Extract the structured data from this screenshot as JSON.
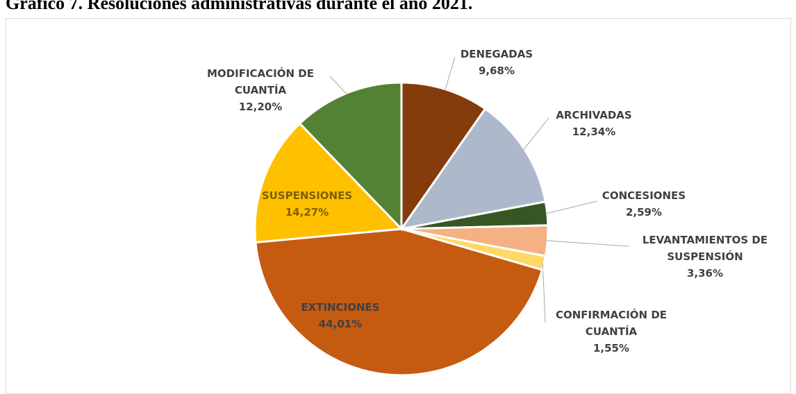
{
  "chart_data": {
    "type": "pie",
    "title": "Gráfico 7. Resoluciones administrativas durante el año 2021.",
    "categories": [
      "DENEGADAS",
      "ARCHIVADAS",
      "CONCESIONES",
      "LEVANTAMIENTOS DE SUSPENSIÓN",
      "CONFIRMACIÓN DE CUANTÍA",
      "EXTINCIONES",
      "SUSPENSIONES",
      "MODIFICACIÓN DE CUANTÍA"
    ],
    "values": [
      9.68,
      12.34,
      2.59,
      3.36,
      1.55,
      44.01,
      14.27,
      12.2
    ],
    "value_labels": [
      "9,68%",
      "12,34%",
      "2,59%",
      "3,36%",
      "1,55%",
      "44,01%",
      "14,27%",
      "12,20%"
    ],
    "colors": [
      "#843c0c",
      "#adb9ca",
      "#375623",
      "#f4b183",
      "#ffd966",
      "#c55a11",
      "#ffc000",
      "#548235"
    ]
  }
}
